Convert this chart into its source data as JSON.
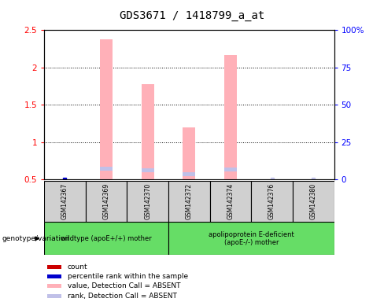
{
  "title": "GDS3671 / 1418799_a_at",
  "samples": [
    "GSM142367",
    "GSM142369",
    "GSM142370",
    "GSM142372",
    "GSM142374",
    "GSM142376",
    "GSM142380"
  ],
  "pink_bar_values": [
    0.0,
    2.38,
    1.78,
    1.2,
    2.17,
    0.0,
    0.0
  ],
  "pink_bar_base": 0.5,
  "blue_segment_values": [
    0.0,
    0.65,
    0.63,
    0.57,
    0.64,
    0.0,
    0.0
  ],
  "light_blue_dot_indices": [
    5,
    6
  ],
  "dark_blue_dot_index": 0,
  "ylim": [
    0.5,
    2.5
  ],
  "yticks": [
    0.5,
    1.0,
    1.5,
    2.0,
    2.5
  ],
  "ytick_labels": [
    "0.5",
    "1",
    "1.5",
    "2",
    "2.5"
  ],
  "right_yticks": [
    0,
    25,
    50,
    75,
    100
  ],
  "right_ytick_labels": [
    "0",
    "25",
    "50",
    "75",
    "100%"
  ],
  "group1_label": "wildtype (apoE+/+) mother",
  "group2_label": "apolipoprotein E-deficient\n(apoE-/-) mother",
  "genotype_label": "genotype/variation",
  "legend_labels": [
    "count",
    "percentile rank within the sample",
    "value, Detection Call = ABSENT",
    "rank, Detection Call = ABSENT"
  ],
  "legend_colors": [
    "#cc0000",
    "#0000cc",
    "#ffb0b8",
    "#c0c0e8"
  ],
  "pink_color": "#ffb0b8",
  "blue_seg_color": "#c0c0e8",
  "dark_blue_color": "#0000cc",
  "light_blue_color": "#c0c0e8",
  "group_bg": "#66dd66",
  "sample_bg": "#d0d0d0",
  "title_fontsize": 10,
  "tick_fontsize": 7.5,
  "bar_width": 0.3
}
